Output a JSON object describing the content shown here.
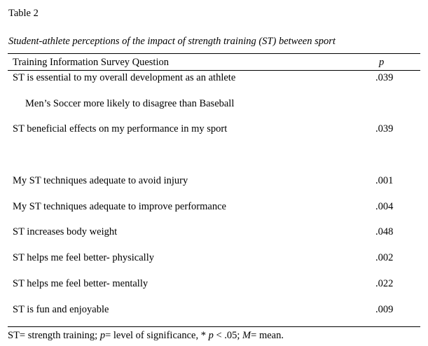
{
  "table_label": "Table 2",
  "caption": "Student-athlete perceptions of the impact of strength training (ST) between sport",
  "columns": {
    "question": "Training Information Survey Question",
    "p": "p"
  },
  "rows": [
    {
      "question": "ST is essential to my overall development as an athlete",
      "p": ".039"
    },
    {
      "question": "Men’s Soccer more likely to disagree than Baseball",
      "p": ""
    },
    {
      "question": "ST beneficial effects on my performance in my sport",
      "p": ".039"
    },
    {
      "question": "My ST techniques adequate to avoid injury",
      "p": ".001"
    },
    {
      "question": "My ST techniques adequate to improve performance",
      "p": ".004"
    },
    {
      "question": "ST increases body weight",
      "p": ".048"
    },
    {
      "question": "ST helps me feel better- physically",
      "p": ".002"
    },
    {
      "question": "ST helps me feel better- mentally",
      "p": ".022"
    },
    {
      "question": "ST is fun and enjoyable",
      "p": ".009"
    }
  ],
  "note": {
    "part1": "ST= strength training; ",
    "p_symbol": "p",
    "part2": "= level of significance, * ",
    "p_symbol2": "p",
    "part3": " < .05; ",
    "m_symbol": "M",
    "part4": "= mean."
  }
}
